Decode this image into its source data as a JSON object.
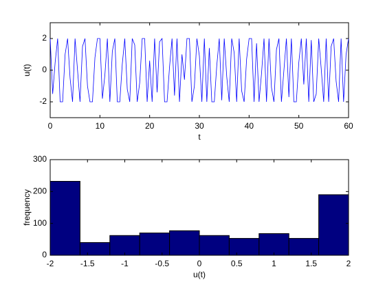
{
  "chart_data": [
    {
      "type": "line",
      "xlabel": "t",
      "ylabel": "u(t)",
      "x": [
        0,
        0.5,
        1,
        1.5,
        2,
        2.5,
        3,
        3.5,
        4,
        4.5,
        5,
        5.5,
        6,
        6.5,
        7,
        7.5,
        8,
        8.5,
        9,
        9.5,
        10,
        10.5,
        11,
        11.5,
        12,
        12.5,
        13,
        13.5,
        14,
        14.5,
        15,
        15.5,
        16,
        16.5,
        17,
        17.5,
        18,
        18.5,
        19,
        19.5,
        20,
        20.5,
        21,
        21.5,
        22,
        22.5,
        23,
        23.5,
        24,
        24.5,
        25,
        25.5,
        26,
        26.5,
        27,
        27.5,
        28,
        28.5,
        29,
        29.5,
        30,
        30.5,
        31,
        31.5,
        32,
        32.5,
        33,
        33.5,
        34,
        34.5,
        35,
        35.5,
        36,
        36.5,
        37,
        37.5,
        38,
        38.5,
        39,
        39.5,
        40,
        40.5,
        41,
        41.5,
        42,
        42.5,
        43,
        43.5,
        44,
        44.5,
        45,
        45.5,
        46,
        46.5,
        47,
        47.5,
        48,
        48.5,
        49,
        49.5,
        50,
        50.5,
        51,
        51.5,
        52,
        52.5,
        53,
        53.5,
        54,
        54.5,
        55,
        55.5,
        56,
        56.5,
        57,
        57.5,
        58,
        58.5,
        59,
        59.5,
        60
      ],
      "series": [
        {
          "color": "#0000ff",
          "values": [
            2,
            -1.5,
            0.5,
            2,
            -2,
            -2,
            1,
            2,
            -0.5,
            -2,
            2,
            0,
            -2,
            1.5,
            2,
            -1,
            -2,
            -2,
            0.8,
            2,
            2,
            -1.8,
            -0.3,
            2,
            -2,
            1.2,
            2,
            -2,
            -2,
            0.4,
            2,
            -1.2,
            -2,
            2,
            1.6,
            -2,
            -0.8,
            2,
            2,
            -2,
            0.6,
            -2,
            2,
            -1.4,
            1.8,
            2,
            -2,
            -2,
            0.2,
            2,
            -1.6,
            2,
            -2,
            1,
            -0.6,
            2,
            2,
            -2,
            -1,
            2,
            0.9,
            -2,
            2,
            -2,
            1.4,
            -2,
            -2,
            0.3,
            2,
            -1.9,
            2,
            -0.4,
            -2,
            2,
            1.1,
            -2,
            2,
            -1.3,
            -2,
            0.7,
            2,
            2,
            -2,
            1.7,
            -2,
            -0.2,
            2,
            -2,
            2,
            -1.1,
            -2,
            1.3,
            2,
            -2,
            0,
            2,
            -1.7,
            2,
            -2,
            -2,
            0.5,
            2,
            -0.9,
            2,
            -2,
            1.9,
            -2,
            -1.5,
            2,
            0.1,
            -2,
            2,
            -2,
            1.5,
            2,
            -0.7,
            -2,
            2,
            -2,
            1,
            2
          ]
        }
      ],
      "xlim": [
        0,
        60
      ],
      "xticks": [
        0,
        10,
        20,
        30,
        40,
        50,
        60
      ],
      "ylim": [
        -3,
        3
      ],
      "yticks": [
        -2,
        0,
        2
      ]
    },
    {
      "type": "histogram",
      "xlabel": "u(t)",
      "ylabel": "frequency",
      "bins": [
        -2,
        -1.6,
        -1.2,
        -0.8,
        -0.4,
        0,
        0.4,
        0.8,
        1.2,
        1.6,
        2
      ],
      "values": [
        232,
        40,
        62,
        70,
        77,
        62,
        53,
        68,
        53,
        190
      ],
      "color": "#000080",
      "xlim": [
        -2,
        2
      ],
      "xticks": [
        -2,
        -1.5,
        -1,
        -0.5,
        0,
        0.5,
        1,
        1.5,
        2
      ],
      "ylim": [
        0,
        300
      ],
      "yticks": [
        0,
        100,
        200,
        300
      ]
    }
  ]
}
